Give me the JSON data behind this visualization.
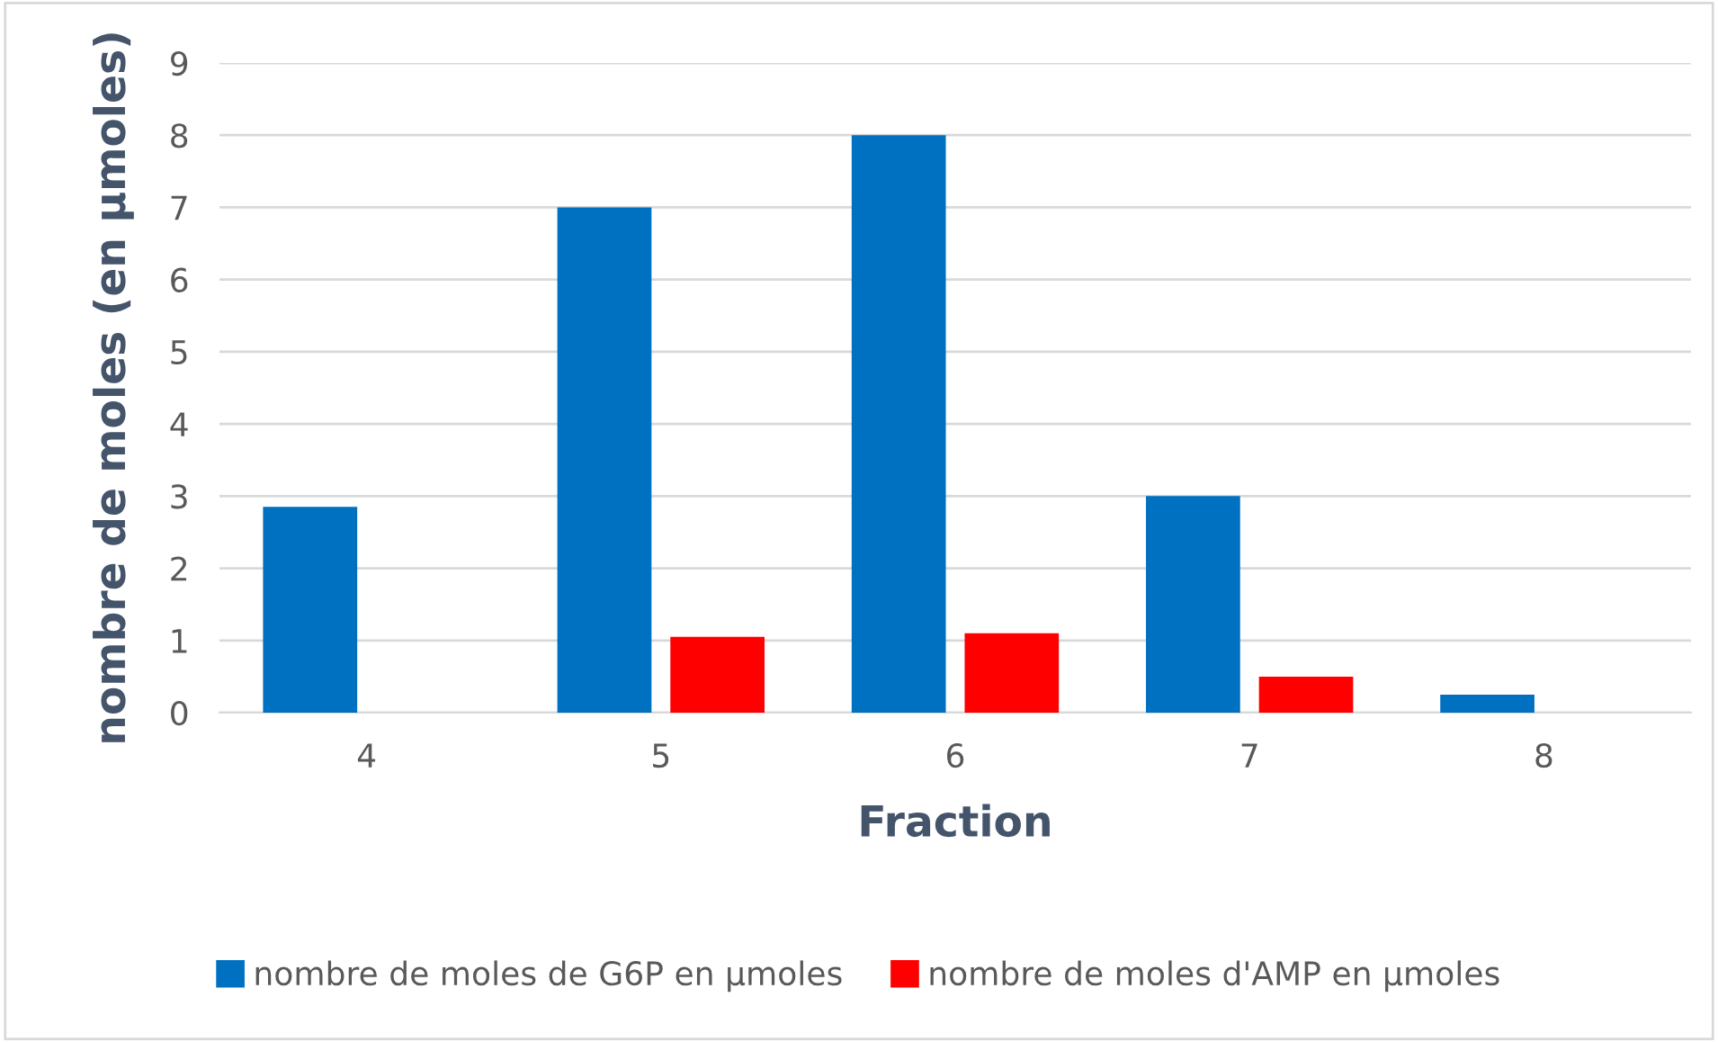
{
  "chart_data": {
    "type": "bar",
    "xlabel": "Fraction",
    "ylabel": "nombre de moles (en µmoles)",
    "categories": [
      "4",
      "5",
      "6",
      "7",
      "8"
    ],
    "series": [
      {
        "name": "nombre de moles de G6P en µmoles",
        "color": "#0070c0",
        "values": [
          2.85,
          7,
          8,
          3,
          0.25
        ]
      },
      {
        "name": "nombre de moles d'AMP en µmoles",
        "color": "#ff0000",
        "values": [
          null,
          1.05,
          1.1,
          0.5,
          null
        ]
      }
    ],
    "ylim": [
      0,
      9
    ],
    "yticks": [
      0,
      1,
      2,
      3,
      4,
      5,
      6,
      7,
      8,
      9
    ],
    "grid": "y",
    "legend": "bottom"
  }
}
